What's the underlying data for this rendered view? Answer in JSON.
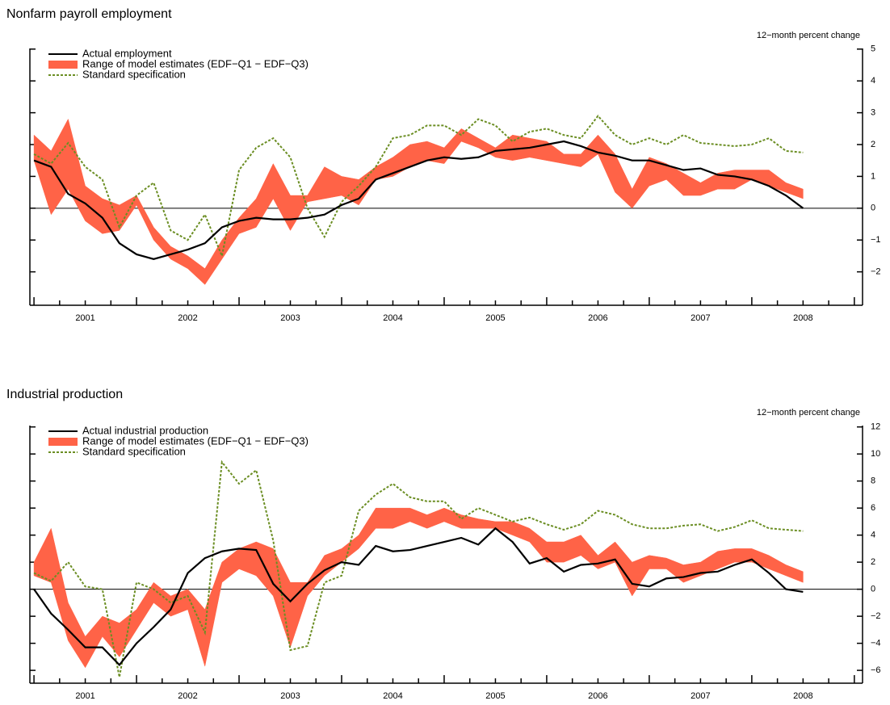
{
  "chart_data": [
    {
      "type": "line",
      "title": "Nonfarm payroll employment",
      "y_axis_label": "12−month percent change",
      "x": [
        2001,
        2001.167,
        2001.333,
        2001.5,
        2001.667,
        2001.833,
        2002,
        2002.167,
        2002.333,
        2002.5,
        2002.667,
        2002.833,
        2003,
        2003.167,
        2003.333,
        2003.5,
        2003.667,
        2003.833,
        2004,
        2004.167,
        2004.333,
        2004.5,
        2004.667,
        2004.833,
        2005,
        2005.167,
        2005.333,
        2005.5,
        2005.667,
        2005.833,
        2006,
        2006.167,
        2006.333,
        2006.5,
        2006.667,
        2006.833,
        2007,
        2007.167,
        2007.333,
        2007.5,
        2007.667,
        2007.833,
        2008,
        2008.167,
        2008.333,
        2008.5
      ],
      "xlim": [
        2000.96,
        2009.08
      ],
      "xticks": [
        {
          "value": 2001.5,
          "label": "2001"
        },
        {
          "value": 2002.5,
          "label": "2002"
        },
        {
          "value": 2003.5,
          "label": "2003"
        },
        {
          "value": 2004.5,
          "label": "2004"
        },
        {
          "value": 2005.5,
          "label": "2005"
        },
        {
          "value": 2006.5,
          "label": "2006"
        },
        {
          "value": 2007.5,
          "label": "2007"
        },
        {
          "value": 2008.5,
          "label": "2008"
        }
      ],
      "ylim": [
        -3.05,
        5.02
      ],
      "yticks": [
        {
          "value": -2,
          "label": "−2"
        },
        {
          "value": -1,
          "label": "−1"
        },
        0,
        1,
        2,
        3,
        4,
        5
      ],
      "zero_line": true,
      "series": [
        {
          "name": "Actual employment",
          "style": "solid",
          "color": "#000000",
          "values": [
            1.5,
            1.3,
            0.45,
            0.15,
            -0.3,
            -1.1,
            -1.45,
            -1.6,
            -1.45,
            -1.3,
            -1.1,
            -0.6,
            -0.4,
            -0.3,
            -0.35,
            -0.35,
            -0.3,
            -0.2,
            0.1,
            0.3,
            0.9,
            1.1,
            1.3,
            1.5,
            1.6,
            1.55,
            1.6,
            1.8,
            1.85,
            1.9,
            2.0,
            2.1,
            1.95,
            1.75,
            1.65,
            1.5,
            1.5,
            1.35,
            1.2,
            1.25,
            1.05,
            1.0,
            0.9,
            0.7,
            0.4,
            0.0
          ]
        },
        {
          "name": "Range of model estimates (EDF−Q1 − EDF−Q3)",
          "style": "band",
          "color": "#ff6347",
          "low": [
            1.5,
            -0.2,
            0.6,
            -0.4,
            -0.8,
            -0.7,
            0.1,
            -1.0,
            -1.6,
            -1.9,
            -2.4,
            -1.6,
            -0.8,
            -0.6,
            0.3,
            -0.7,
            0.2,
            0.3,
            0.4,
            0.1,
            0.9,
            1.0,
            1.3,
            1.5,
            1.4,
            2.1,
            1.9,
            1.6,
            1.5,
            1.6,
            1.5,
            1.4,
            1.3,
            1.7,
            0.5,
            0.0,
            0.7,
            0.9,
            0.4,
            0.4,
            0.6,
            0.6,
            0.9,
            0.7,
            0.5,
            0.3
          ],
          "high": [
            2.3,
            1.8,
            2.8,
            0.7,
            0.3,
            0.1,
            0.4,
            -0.6,
            -1.2,
            -1.5,
            -1.9,
            -1.0,
            -0.3,
            0.3,
            1.4,
            0.4,
            0.4,
            1.3,
            1.0,
            0.9,
            1.3,
            1.6,
            2.0,
            2.1,
            1.9,
            2.5,
            2.2,
            1.9,
            2.3,
            2.2,
            2.1,
            1.7,
            1.7,
            2.3,
            1.7,
            0.6,
            1.6,
            1.4,
            1.1,
            0.8,
            1.1,
            1.2,
            1.2,
            1.2,
            0.8,
            0.6
          ]
        },
        {
          "name": "Standard specification",
          "style": "dashed",
          "color": "#6b8e23",
          "values": [
            1.7,
            1.4,
            2.05,
            1.3,
            0.9,
            -0.6,
            0.4,
            0.8,
            -0.7,
            -1.0,
            -0.2,
            -1.5,
            1.2,
            1.9,
            2.2,
            1.6,
            0.0,
            -0.9,
            0.2,
            0.7,
            1.3,
            2.2,
            2.3,
            2.6,
            2.6,
            2.3,
            2.8,
            2.6,
            2.1,
            2.4,
            2.5,
            2.3,
            2.2,
            2.9,
            2.3,
            2.0,
            2.2,
            2.0,
            2.3,
            2.05,
            2.0,
            1.95,
            2.0,
            2.2,
            1.8,
            1.75
          ]
        }
      ]
    },
    {
      "type": "line",
      "title": "Industrial production",
      "y_axis_label": "12−month percent change",
      "x": [
        2001,
        2001.167,
        2001.333,
        2001.5,
        2001.667,
        2001.833,
        2002,
        2002.167,
        2002.333,
        2002.5,
        2002.667,
        2002.833,
        2003,
        2003.167,
        2003.333,
        2003.5,
        2003.667,
        2003.833,
        2004,
        2004.167,
        2004.333,
        2004.5,
        2004.667,
        2004.833,
        2005,
        2005.167,
        2005.333,
        2005.5,
        2005.667,
        2005.833,
        2006,
        2006.167,
        2006.333,
        2006.5,
        2006.667,
        2006.833,
        2007,
        2007.167,
        2007.333,
        2007.5,
        2007.667,
        2007.833,
        2008,
        2008.167,
        2008.333,
        2008.5
      ],
      "xlim": [
        2000.96,
        2009.08
      ],
      "xticks": [
        {
          "value": 2001.5,
          "label": "2001"
        },
        {
          "value": 2002.5,
          "label": "2002"
        },
        {
          "value": 2003.5,
          "label": "2003"
        },
        {
          "value": 2004.5,
          "label": "2004"
        },
        {
          "value": 2005.5,
          "label": "2005"
        },
        {
          "value": 2006.5,
          "label": "2006"
        },
        {
          "value": 2007.5,
          "label": "2007"
        },
        {
          "value": 2008.5,
          "label": "2008"
        }
      ],
      "ylim": [
        -6.95,
        12.1
      ],
      "yticks": [
        {
          "value": -6,
          "label": "−6"
        },
        {
          "value": -4,
          "label": "−4"
        },
        {
          "value": -2,
          "label": "−2"
        },
        0,
        2,
        4,
        6,
        8,
        10,
        12
      ],
      "zero_line": true,
      "series": [
        {
          "name": "Actual industrial production",
          "style": "solid",
          "color": "#000000",
          "values": [
            0.0,
            -1.8,
            -3.0,
            -4.3,
            -4.3,
            -5.6,
            -4.0,
            -2.8,
            -1.5,
            1.2,
            2.3,
            2.8,
            3.0,
            2.9,
            0.4,
            -0.9,
            0.4,
            1.4,
            2.0,
            1.8,
            3.2,
            2.8,
            2.9,
            3.2,
            3.5,
            3.8,
            3.3,
            4.5,
            3.5,
            1.9,
            2.3,
            1.3,
            1.8,
            1.9,
            2.2,
            0.4,
            0.2,
            0.8,
            0.9,
            1.2,
            1.3,
            1.8,
            2.2,
            1.2,
            0.0,
            -0.2
          ]
        },
        {
          "name": "Range of model estimates (EDF−Q1 − EDF−Q3)",
          "style": "band",
          "color": "#ff6347",
          "low": [
            1.0,
            0.5,
            -3.8,
            -5.8,
            -3.5,
            -5.0,
            -3.0,
            -1.0,
            -2.0,
            -1.5,
            -5.7,
            0.5,
            1.5,
            1.0,
            -0.5,
            -4.3,
            -0.5,
            1.0,
            2.0,
            3.0,
            4.5,
            4.5,
            5.0,
            4.5,
            5.0,
            4.5,
            4.5,
            4.5,
            4.0,
            3.5,
            2.0,
            2.0,
            2.5,
            1.5,
            2.0,
            -0.5,
            1.5,
            1.5,
            0.5,
            1.0,
            1.5,
            2.0,
            2.0,
            1.5,
            1.0,
            0.5
          ],
          "high": [
            2.0,
            4.5,
            -1.0,
            -3.5,
            -2.0,
            -2.5,
            -1.5,
            0.5,
            -0.5,
            0.0,
            -1.5,
            2.0,
            3.0,
            3.5,
            3.0,
            0.5,
            0.5,
            2.5,
            3.0,
            4.0,
            6.0,
            6.0,
            6.0,
            5.5,
            6.0,
            5.5,
            5.2,
            5.0,
            5.0,
            4.5,
            3.5,
            3.5,
            4.0,
            2.5,
            3.5,
            2.0,
            2.5,
            2.3,
            1.8,
            2.0,
            2.8,
            3.0,
            3.0,
            2.5,
            1.8,
            1.3
          ]
        },
        {
          "name": "Standard specification",
          "style": "dashed",
          "color": "#6b8e23",
          "values": [
            1.2,
            0.6,
            2.0,
            0.2,
            0.0,
            -6.5,
            0.5,
            0.0,
            -1.0,
            -0.5,
            -3.2,
            9.4,
            7.8,
            8.8,
            3.6,
            -4.5,
            -4.2,
            0.5,
            1.0,
            5.8,
            7.0,
            7.8,
            6.8,
            6.5,
            6.5,
            5.2,
            6.0,
            5.5,
            5.0,
            5.3,
            4.8,
            4.4,
            4.8,
            5.8,
            5.5,
            4.8,
            4.5,
            4.5,
            4.7,
            4.8,
            4.3,
            4.6,
            5.1,
            4.5,
            4.4,
            4.3
          ]
        }
      ]
    }
  ]
}
